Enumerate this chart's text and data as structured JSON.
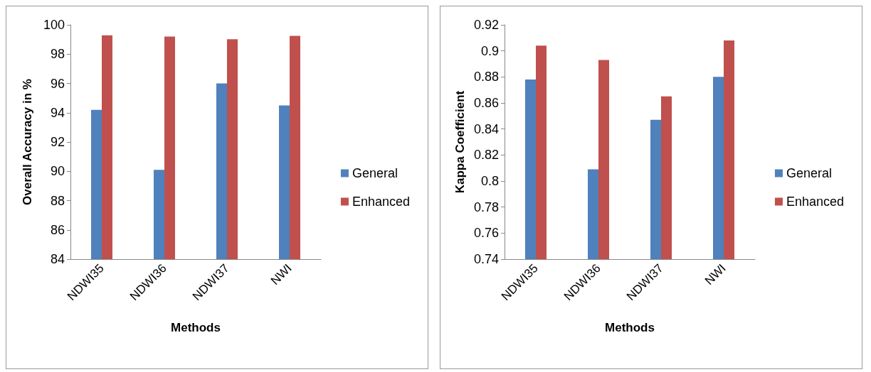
{
  "chart_data": [
    {
      "type": "bar",
      "xlabel": "Methods",
      "ylabel": "Overall Accuracy in %",
      "categories": [
        "NDWI35",
        "NDWI36",
        "NDWI37",
        "NWI"
      ],
      "series": [
        {
          "name": "General",
          "color": "#4f81bd",
          "values": [
            94.2,
            90.1,
            96.0,
            94.5
          ]
        },
        {
          "name": "Enhanced",
          "color": "#c0504d",
          "values": [
            99.28,
            99.2,
            99.02,
            99.25
          ]
        }
      ],
      "ylim": [
        84,
        100
      ],
      "yticks": [
        84,
        86,
        88,
        90,
        92,
        94,
        96,
        98,
        100
      ],
      "grid": false,
      "legend": "right"
    },
    {
      "type": "bar",
      "xlabel": "Methods",
      "ylabel": "Kappa Coefficient",
      "categories": [
        "NDWI35",
        "NDWI36",
        "NDWI37",
        "NWI"
      ],
      "series": [
        {
          "name": "General",
          "color": "#4f81bd",
          "values": [
            0.878,
            0.809,
            0.847,
            0.88
          ]
        },
        {
          "name": "Enhanced",
          "color": "#c0504d",
          "values": [
            0.904,
            0.893,
            0.865,
            0.908
          ]
        }
      ],
      "ylim": [
        0.74,
        0.92
      ],
      "yticks": [
        0.74,
        0.76,
        0.78,
        0.8,
        0.82,
        0.84,
        0.86,
        0.88,
        0.9,
        0.92
      ],
      "grid": false,
      "legend": "right"
    }
  ]
}
